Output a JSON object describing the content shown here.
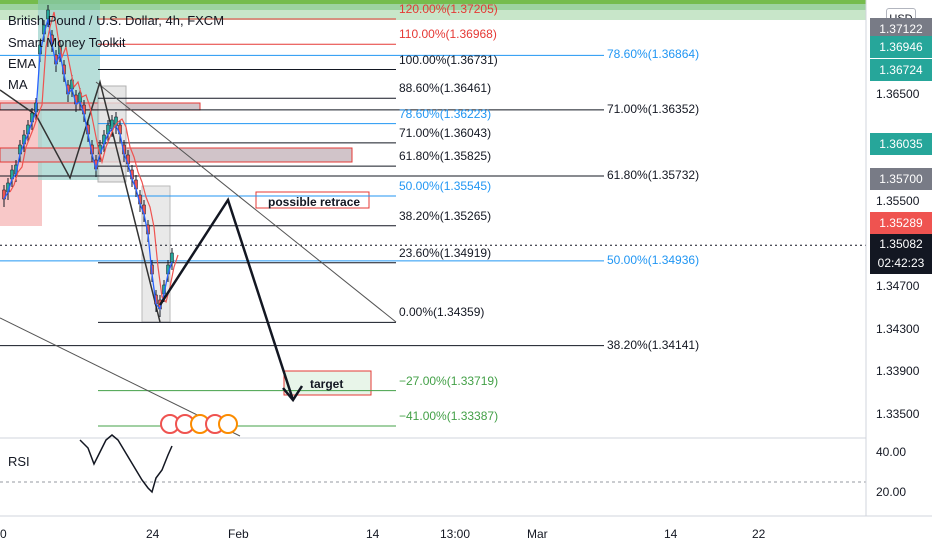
{
  "legend": {
    "symbol": "British Pound / U.S. Dollar, 4h, FXCM",
    "indicators": [
      "Smart Money Toolkit",
      "EMA",
      "MA"
    ]
  },
  "currency_button": "USD",
  "rsi_label": "RSI",
  "fib_left": [
    {
      "label": "120.00%(1.37205)",
      "color": "#e53935",
      "price": 1.37205
    },
    {
      "label": "110.00%(1.36968)",
      "color": "#e53935",
      "price": 1.36968
    },
    {
      "label": "100.00%(1.36731)",
      "color": "#131722",
      "price": 1.36731
    },
    {
      "label": "88.60%(1.36461)",
      "color": "#131722",
      "price": 1.36461
    },
    {
      "label": "78.60%(1.36223)",
      "color": "#2196f3",
      "price": 1.36223
    },
    {
      "label": "71.00%(1.36043)",
      "color": "#131722",
      "price": 1.36043
    },
    {
      "label": "61.80%(1.35825)",
      "color": "#131722",
      "price": 1.35825
    },
    {
      "label": "50.00%(1.35545)",
      "color": "#2196f3",
      "price": 1.35545
    },
    {
      "label": "38.20%(1.35265)",
      "color": "#131722",
      "price": 1.35265
    },
    {
      "label": "23.60%(1.34919)",
      "color": "#131722",
      "price": 1.34919
    },
    {
      "label": "0.00%(1.34359)",
      "color": "#131722",
      "price": 1.34359
    },
    {
      "label": "−27.00%(1.33719)",
      "color": "#43a047",
      "price": 1.33719
    },
    {
      "label": "−41.00%(1.33387)",
      "color": "#43a047",
      "price": 1.33387
    }
  ],
  "fib_right": [
    {
      "label": "78.60%(1.36864)",
      "color": "#2196f3",
      "price": 1.36864
    },
    {
      "label": "71.00%(1.36352)",
      "color": "#131722",
      "price": 1.36352
    },
    {
      "label": "61.80%(1.35732)",
      "color": "#131722",
      "price": 1.35732
    },
    {
      "label": "50.00%(1.34936)",
      "color": "#2196f3",
      "price": 1.34936
    },
    {
      "label": "38.20%(1.34141)",
      "color": "#131722",
      "price": 1.34141
    }
  ],
  "annotations": {
    "retrace": "possible retrace",
    "target": "target"
  },
  "price_axis": [
    "1.36500",
    "1.35500",
    "1.34700",
    "1.34300",
    "1.33900",
    "1.33500"
  ],
  "price_tags": [
    {
      "label": "1.37122",
      "color": "#787b86",
      "price": 1.37122
    },
    {
      "label": "1.36946",
      "color": "#26a69a",
      "price": 1.36946
    },
    {
      "label": "1.36724",
      "color": "#26a69a",
      "price": 1.36724
    },
    {
      "label": "1.36035",
      "color": "#26a69a",
      "price": 1.36035
    },
    {
      "label": "1.35700",
      "color": "#787b86",
      "price": 1.357
    },
    {
      "label": "1.35289",
      "color": "#ef5350",
      "price": 1.35289
    }
  ],
  "current_price": {
    "price": "1.35082",
    "countdown": "02:42:23"
  },
  "rsi_axis": [
    "40.00",
    "20.00"
  ],
  "time_axis": [
    "0",
    "24",
    "Feb",
    "14",
    "13:00",
    "Mar",
    "14",
    "22"
  ],
  "colors": {
    "up": "#26a69a",
    "down": "#ef5350",
    "ema": "#2962ff",
    "ma": "#ef5350",
    "fib_target": "#43a047"
  }
}
